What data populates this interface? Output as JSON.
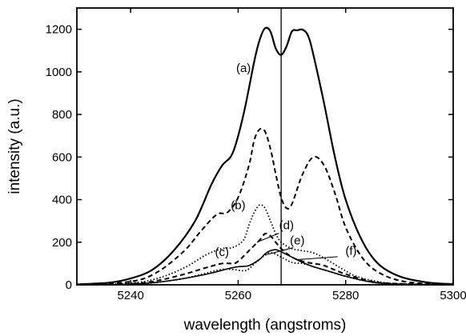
{
  "chart_data": {
    "type": "line",
    "xlabel": "wavelength (angstroms)",
    "ylabel": "intensity (a.u.)",
    "xlim": [
      5230,
      5300
    ],
    "ylim": [
      0,
      1300
    ],
    "x_ticks": [
      5240,
      5260,
      5280,
      5300
    ],
    "y_ticks": [
      0,
      200,
      400,
      600,
      800,
      1000,
      1200
    ],
    "grid": false,
    "vertical_reference_line_x": 5268,
    "series": [
      {
        "name": "(a)",
        "style": "solid-thick",
        "x": [
          5230,
          5236,
          5240,
          5244,
          5248,
          5252,
          5255,
          5257,
          5259,
          5261,
          5263,
          5264,
          5265,
          5266,
          5267,
          5268,
          5269,
          5270,
          5271,
          5272,
          5273,
          5274,
          5276,
          5278,
          5280,
          5283,
          5286,
          5290,
          5295,
          5300
        ],
        "values": [
          2,
          10,
          30,
          70,
          160,
          300,
          470,
          560,
          620,
          800,
          1050,
          1150,
          1205,
          1190,
          1110,
          1080,
          1120,
          1190,
          1195,
          1198,
          1170,
          1080,
          850,
          600,
          400,
          210,
          100,
          40,
          12,
          3
        ],
        "label_anchor": [
          5261,
          1000
        ]
      },
      {
        "name": "(b)",
        "style": "dashed",
        "x": [
          5230,
          5240,
          5245,
          5250,
          5253,
          5256,
          5258,
          5260,
          5262,
          5263,
          5264,
          5265,
          5266,
          5267,
          5268,
          5269,
          5270,
          5272,
          5274,
          5276,
          5278,
          5280,
          5283,
          5286,
          5290,
          5295,
          5300
        ],
        "values": [
          1,
          15,
          60,
          160,
          250,
          330,
          340,
          410,
          560,
          680,
          730,
          720,
          640,
          520,
          410,
          360,
          380,
          520,
          600,
          560,
          430,
          270,
          130,
          60,
          20,
          5,
          1
        ],
        "label_anchor": [
          5260,
          355
        ]
      },
      {
        "name": "(c)",
        "style": "dotted",
        "x": [
          5230,
          5240,
          5245,
          5250,
          5254,
          5257,
          5259,
          5261,
          5262,
          5263,
          5264,
          5265,
          5266,
          5267,
          5268,
          5270,
          5272,
          5274,
          5276,
          5279,
          5282,
          5286,
          5290,
          5300
        ],
        "values": [
          0,
          8,
          30,
          80,
          140,
          170,
          175,
          210,
          280,
          340,
          375,
          360,
          300,
          240,
          200,
          170,
          160,
          150,
          125,
          80,
          40,
          15,
          5,
          0
        ],
        "label_anchor": [
          5257,
          135
        ]
      },
      {
        "name": "(d)",
        "style": "dashed",
        "x": [
          5230,
          5240,
          5245,
          5250,
          5254,
          5257,
          5259,
          5260,
          5262,
          5264,
          5265,
          5266,
          5267,
          5268,
          5270,
          5272,
          5274,
          5276,
          5280,
          5285,
          5290,
          5300
        ],
        "values": [
          0,
          5,
          20,
          50,
          80,
          100,
          100,
          110,
          160,
          210,
          240,
          230,
          200,
          170,
          130,
          110,
          100,
          90,
          50,
          15,
          5,
          0
        ],
        "label_anchor": [
          5269,
          262
        ]
      },
      {
        "name": "(e)",
        "style": "dotted",
        "x": [
          5230,
          5240,
          5245,
          5250,
          5254,
          5257,
          5259,
          5261,
          5262,
          5264,
          5266,
          5268,
          5270,
          5272,
          5274,
          5276,
          5280,
          5285,
          5290,
          5300
        ],
        "values": [
          0,
          3,
          12,
          30,
          55,
          72,
          72,
          66,
          75,
          120,
          150,
          130,
          105,
          100,
          85,
          70,
          40,
          12,
          3,
          0
        ],
        "label_anchor": [
          5271,
          190
        ]
      },
      {
        "name": "(f)",
        "style": "solid-thin",
        "x": [
          5230,
          5240,
          5245,
          5250,
          5255,
          5258,
          5260,
          5262,
          5264,
          5265,
          5266,
          5267,
          5268,
          5270,
          5272,
          5274,
          5276,
          5278,
          5280,
          5285,
          5290,
          5300
        ],
        "values": [
          0,
          3,
          12,
          30,
          55,
          75,
          85,
          90,
          120,
          145,
          160,
          165,
          155,
          130,
          105,
          85,
          70,
          55,
          40,
          12,
          3,
          0
        ],
        "label_anchor": [
          5281,
          140
        ]
      }
    ]
  }
}
